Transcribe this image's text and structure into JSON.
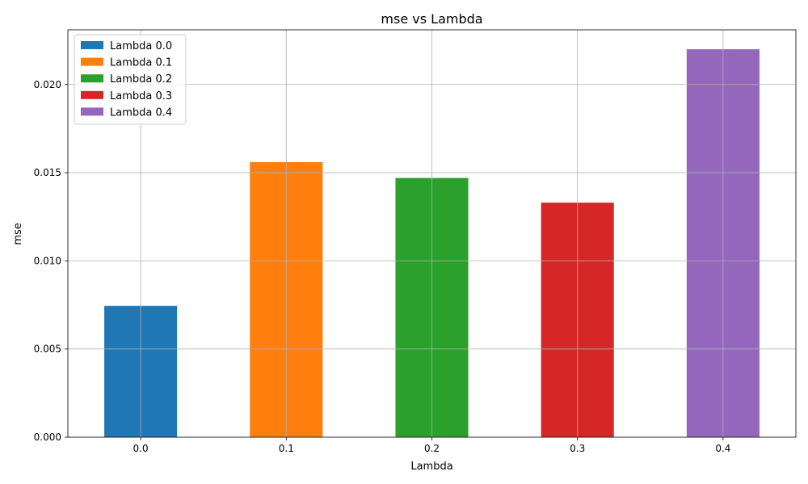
{
  "chart_data": {
    "type": "bar",
    "title": "mse vs Lambda",
    "xlabel": "Lambda",
    "ylabel": "mse",
    "categories": [
      "0.0",
      "0.1",
      "0.2",
      "0.3",
      "0.4"
    ],
    "values": [
      0.00745,
      0.0156,
      0.0147,
      0.0133,
      0.022
    ],
    "colors": [
      "#1f77b4",
      "#ff7f0e",
      "#2ca02c",
      "#d62728",
      "#9467bd"
    ],
    "series_names": [
      "Lambda 0.0",
      "Lambda 0.1",
      "Lambda 0.2",
      "Lambda 0.3",
      "Lambda 0.4"
    ],
    "ylim": [
      0,
      0.0231
    ],
    "yticks": [
      0.0,
      0.005,
      0.01,
      0.015,
      0.02
    ],
    "ytick_labels": [
      "0.000",
      "0.005",
      "0.010",
      "0.015",
      "0.020"
    ],
    "grid": true,
    "legend_position": "top-left"
  }
}
